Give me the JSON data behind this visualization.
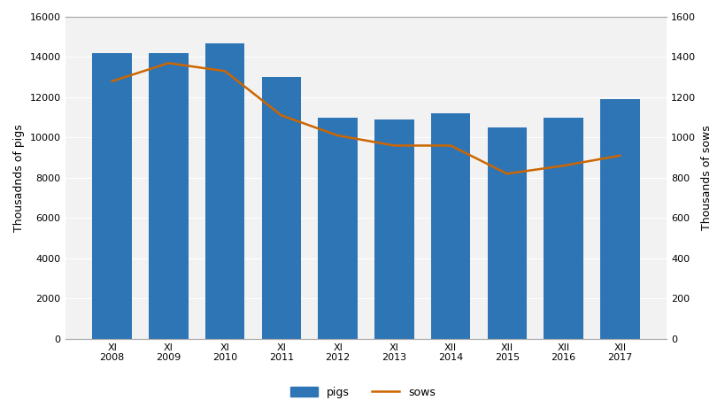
{
  "categories": [
    "XI\n2008",
    "XI\n2009",
    "XI\n2010",
    "XI\n2011",
    "XI\n2012",
    "XI\n2013",
    "XII\n2014",
    "XII\n2015",
    "XII\n2016",
    "XII\n2017"
  ],
  "pigs": [
    14200,
    14200,
    14700,
    13000,
    11000,
    10900,
    11200,
    10500,
    11000,
    11900
  ],
  "sows": [
    1280,
    1370,
    1330,
    1110,
    1010,
    960,
    960,
    820,
    860,
    910
  ],
  "bar_color": "#2E75B6",
  "line_color": "#CC6600",
  "ylabel_left": "Thousadnds of pigs",
  "ylabel_right": "Thousands of sows",
  "ylim_left": [
    0,
    16000
  ],
  "ylim_right": [
    0,
    1600
  ],
  "yticks_left": [
    0,
    2000,
    4000,
    6000,
    8000,
    10000,
    12000,
    14000,
    16000
  ],
  "yticks_right": [
    0,
    200,
    400,
    600,
    800,
    1000,
    1200,
    1400,
    1600
  ],
  "legend_labels": [
    "pigs",
    "sows"
  ],
  "bg_color": "#FFFFFF",
  "plot_bg_color": "#F2F2F2",
  "grid_color": "#FFFFFF",
  "bar_width": 0.7
}
